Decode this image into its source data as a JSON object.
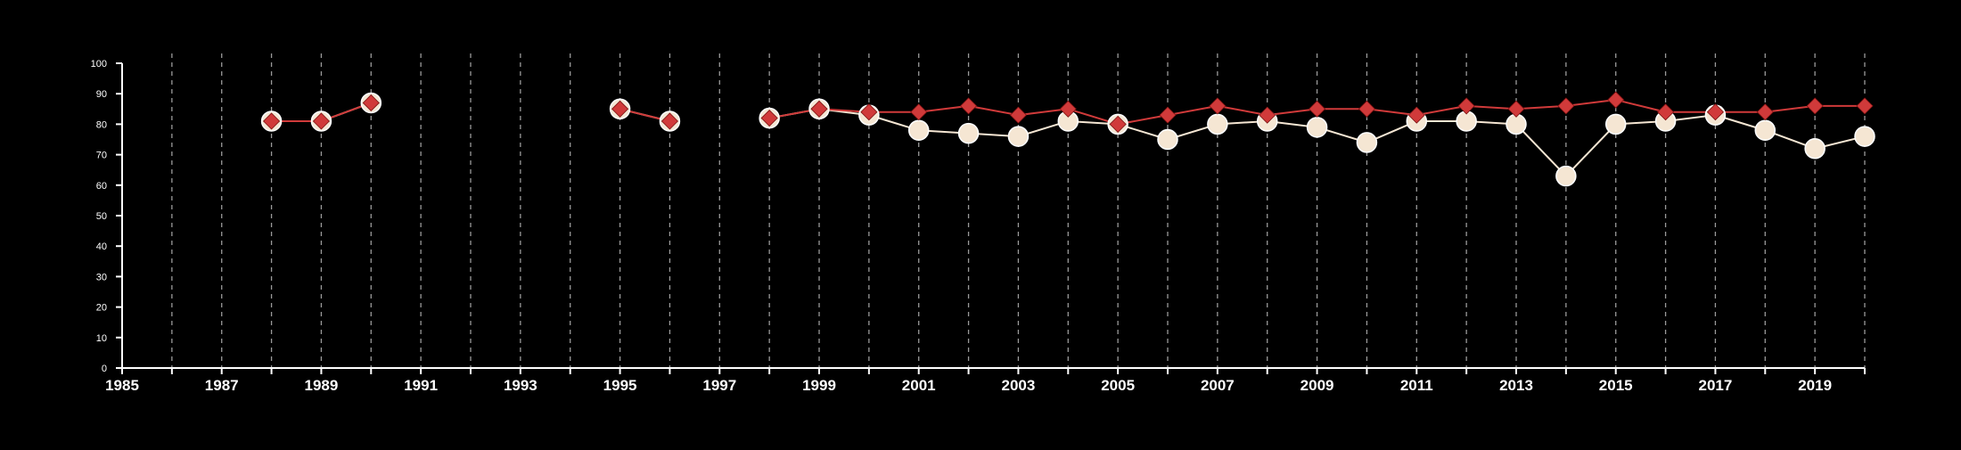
{
  "chart_data": {
    "type": "line",
    "title": "",
    "xlabel": "",
    "ylabel": "",
    "xlim": [
      1985,
      2020
    ],
    "ylim": [
      0,
      100
    ],
    "x_tick_labels": [
      "1985",
      "1987",
      "1989",
      "1991",
      "1993",
      "1995",
      "1997",
      "1999",
      "2001",
      "2003",
      "2005",
      "2007",
      "2009",
      "2011",
      "2013",
      "2015",
      "2017",
      "2019"
    ],
    "y_tick_labels": [
      "0",
      "10",
      "20",
      "30",
      "40",
      "50",
      "60",
      "70",
      "80",
      "90",
      "100"
    ],
    "grid": "vertical dashed lines at every year",
    "legend": "none",
    "background": "#000000",
    "series": [
      {
        "marker": "circle",
        "color": "#f5e6d3",
        "points": [
          {
            "x": 1988,
            "y": 81
          },
          {
            "x": 1989,
            "y": 81
          },
          {
            "x": 1990,
            "y": 87
          },
          {
            "x": 1995,
            "y": 85
          },
          {
            "x": 1996,
            "y": 81
          },
          {
            "x": 1998,
            "y": 82
          },
          {
            "x": 1999,
            "y": 85
          },
          {
            "x": 2000,
            "y": 83
          },
          {
            "x": 2001,
            "y": 78
          },
          {
            "x": 2002,
            "y": 77
          },
          {
            "x": 2003,
            "y": 76
          },
          {
            "x": 2004,
            "y": 81
          },
          {
            "x": 2005,
            "y": 80
          },
          {
            "x": 2006,
            "y": 75
          },
          {
            "x": 2007,
            "y": 80
          },
          {
            "x": 2008,
            "y": 81
          },
          {
            "x": 2009,
            "y": 79
          },
          {
            "x": 2010,
            "y": 74
          },
          {
            "x": 2011,
            "y": 81
          },
          {
            "x": 2012,
            "y": 81
          },
          {
            "x": 2013,
            "y": 80
          },
          {
            "x": 2014,
            "y": 63
          },
          {
            "x": 2015,
            "y": 80
          },
          {
            "x": 2016,
            "y": 81
          },
          {
            "x": 2017,
            "y": 83
          },
          {
            "x": 2018,
            "y": 78
          },
          {
            "x": 2019,
            "y": 72
          },
          {
            "x": 2020,
            "y": 76
          }
        ]
      },
      {
        "marker": "diamond",
        "color": "#d03a3a",
        "points": [
          {
            "x": 1988,
            "y": 81
          },
          {
            "x": 1989,
            "y": 81
          },
          {
            "x": 1990,
            "y": 87
          },
          {
            "x": 1995,
            "y": 85
          },
          {
            "x": 1996,
            "y": 81
          },
          {
            "x": 1998,
            "y": 82
          },
          {
            "x": 1999,
            "y": 85
          },
          {
            "x": 2000,
            "y": 84
          },
          {
            "x": 2001,
            "y": 84
          },
          {
            "x": 2002,
            "y": 86
          },
          {
            "x": 2003,
            "y": 83
          },
          {
            "x": 2004,
            "y": 85
          },
          {
            "x": 2005,
            "y": 80
          },
          {
            "x": 2006,
            "y": 83
          },
          {
            "x": 2007,
            "y": 86
          },
          {
            "x": 2008,
            "y": 83
          },
          {
            "x": 2009,
            "y": 85
          },
          {
            "x": 2010,
            "y": 85
          },
          {
            "x": 2011,
            "y": 83
          },
          {
            "x": 2012,
            "y": 86
          },
          {
            "x": 2013,
            "y": 85
          },
          {
            "x": 2014,
            "y": 86
          },
          {
            "x": 2015,
            "y": 88
          },
          {
            "x": 2016,
            "y": 84
          },
          {
            "x": 2017,
            "y": 84
          },
          {
            "x": 2018,
            "y": 84
          },
          {
            "x": 2019,
            "y": 86
          },
          {
            "x": 2020,
            "y": 86
          }
        ]
      }
    ]
  }
}
